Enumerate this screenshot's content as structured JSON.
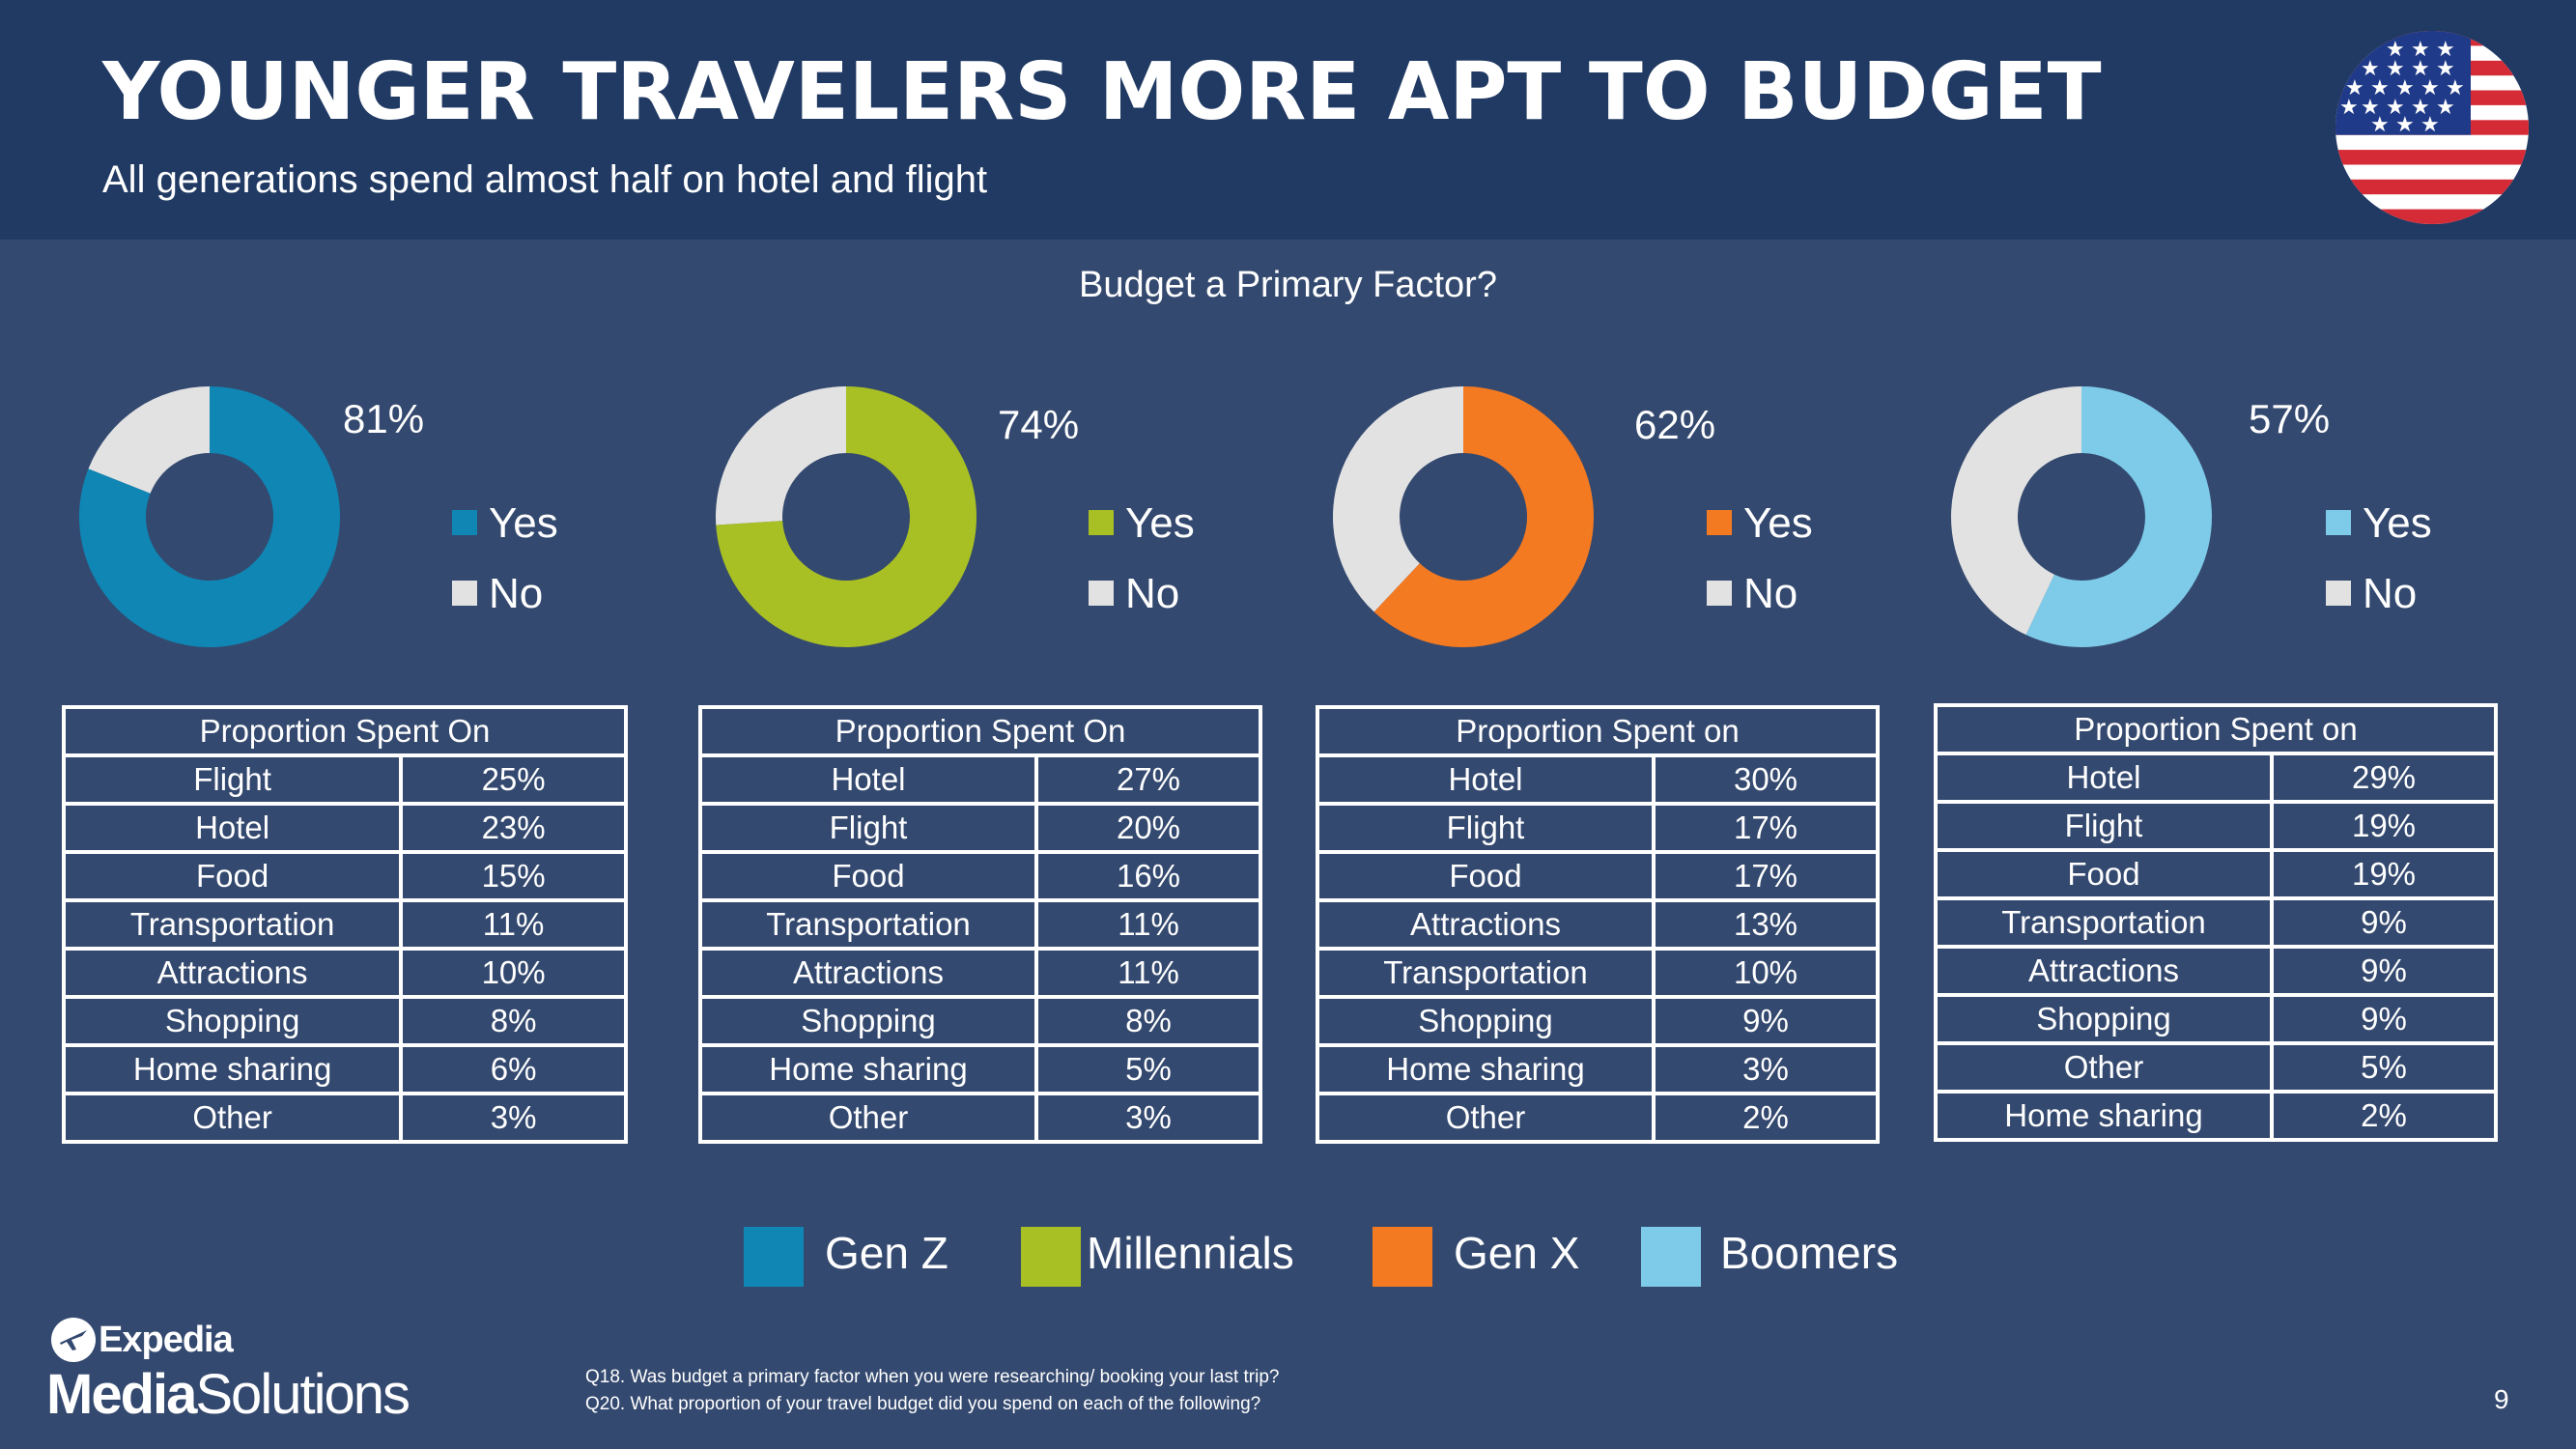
{
  "header": {
    "title": "YOUNGER TRAVELERS MORE APT TO BUDGET",
    "subtitle": "All generations spend almost half on hotel and flight"
  },
  "chart_data": {
    "type": "pie",
    "title": "Budget a Primary Factor?",
    "legend_labels": [
      "Yes",
      "No"
    ],
    "no_color": "#e2e2e2",
    "series": [
      {
        "name": "Gen Z",
        "color": "#0f86b4",
        "yes_pct": 81,
        "no_pct": 19,
        "yes_label": "81%",
        "table_header": "Proportion Spent On",
        "rows": [
          {
            "category": "Flight",
            "value": "25%"
          },
          {
            "category": "Hotel",
            "value": "23%"
          },
          {
            "category": "Food",
            "value": "15%"
          },
          {
            "category": "Transportation",
            "value": "11%"
          },
          {
            "category": "Attractions",
            "value": "10%"
          },
          {
            "category": "Shopping",
            "value": "8%"
          },
          {
            "category": "Home sharing",
            "value": "6%"
          },
          {
            "category": "Other",
            "value": "3%"
          }
        ]
      },
      {
        "name": "Millennials",
        "color": "#a9c024",
        "yes_pct": 74,
        "no_pct": 26,
        "yes_label": "74%",
        "table_header": "Proportion Spent On",
        "rows": [
          {
            "category": "Hotel",
            "value": "27%"
          },
          {
            "category": "Flight",
            "value": "20%"
          },
          {
            "category": "Food",
            "value": "16%"
          },
          {
            "category": "Transportation",
            "value": "11%"
          },
          {
            "category": "Attractions",
            "value": "11%"
          },
          {
            "category": "Shopping",
            "value": "8%"
          },
          {
            "category": "Home sharing",
            "value": "5%"
          },
          {
            "category": "Other",
            "value": "3%"
          }
        ]
      },
      {
        "name": "Gen X",
        "color": "#f47a22",
        "yes_pct": 62,
        "no_pct": 38,
        "yes_label": "62%",
        "table_header": "Proportion Spent on",
        "rows": [
          {
            "category": "Hotel",
            "value": "30%"
          },
          {
            "category": "Flight",
            "value": "17%"
          },
          {
            "category": "Food",
            "value": "17%"
          },
          {
            "category": "Attractions",
            "value": "13%"
          },
          {
            "category": "Transportation",
            "value": "10%"
          },
          {
            "category": "Shopping",
            "value": "9%"
          },
          {
            "category": "Home sharing",
            "value": "3%"
          },
          {
            "category": "Other",
            "value": "2%"
          }
        ]
      },
      {
        "name": "Boomers",
        "color": "#7ecbe9",
        "yes_pct": 57,
        "no_pct": 43,
        "yes_label": "57%",
        "table_header": "Proportion Spent on",
        "rows": [
          {
            "category": "Hotel",
            "value": "29%"
          },
          {
            "category": "Flight",
            "value": "19%"
          },
          {
            "category": "Food",
            "value": "19%"
          },
          {
            "category": "Transportation",
            "value": "9%"
          },
          {
            "category": "Attractions",
            "value": "9%"
          },
          {
            "category": "Shopping",
            "value": "9%"
          },
          {
            "category": "Other",
            "value": "5%"
          },
          {
            "category": "Home sharing",
            "value": "2%"
          }
        ]
      }
    ]
  },
  "footer": {
    "logo_top": "Expedia",
    "logo_bold": "Media",
    "logo_rest": "Solutions",
    "notes": [
      "Q18. Was budget a primary factor when you were researching/ booking your last trip?",
      "Q20. What proportion of your travel budget did you spend on each of the following?"
    ],
    "page_number": "9"
  }
}
